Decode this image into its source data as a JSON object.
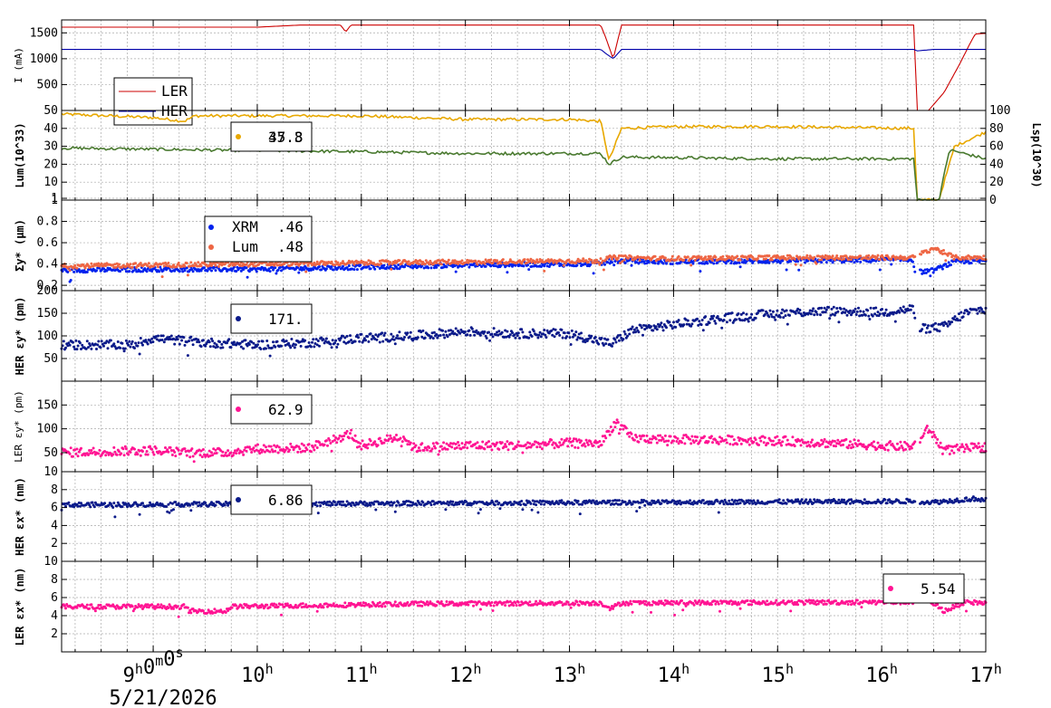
{
  "x_axis": {
    "tick_labels": [
      "9h0m0s",
      "10h",
      "11h",
      "12h",
      "13h",
      "14h",
      "15h",
      "16h",
      "17h"
    ],
    "date_label": "5/21/2026"
  },
  "chart_data": [
    {
      "type": "line",
      "ylabel": "I (mA)",
      "yticks": [
        "500",
        "1000",
        "1500"
      ],
      "ylim": [
        0,
        1750
      ],
      "x_unit": "hour",
      "xlim": [
        8.12,
        17.0
      ],
      "legend": [
        {
          "label": "LER",
          "color": "#cc0000"
        },
        {
          "label": "HER",
          "color": "#0000aa"
        }
      ],
      "series": [
        {
          "name": "LER",
          "color": "#cc0000",
          "x": [
            8.12,
            10.0,
            10.4,
            10.8,
            10.85,
            10.9,
            11.0,
            13.3,
            13.35,
            13.42,
            13.5,
            16.32,
            16.33,
            16.45,
            16.6,
            16.75,
            16.85,
            16.9,
            17.0
          ],
          "y": [
            1610,
            1610,
            1650,
            1650,
            1520,
            1650,
            1650,
            1650,
            1400,
            1000,
            1650,
            1650,
            0,
            0,
            350,
            900,
            1300,
            1480,
            1490
          ]
        },
        {
          "name": "HER",
          "color": "#0000aa",
          "x": [
            8.12,
            13.3,
            13.35,
            13.42,
            13.5,
            16.32,
            16.33,
            16.5,
            16.6,
            17.0
          ],
          "y": [
            1180,
            1180,
            1100,
            1000,
            1180,
            1180,
            1150,
            1180,
            1180,
            1180
          ]
        }
      ]
    },
    {
      "type": "line",
      "ylabel": "Lum(10^33)",
      "ylabel_right": "Lsp(10^30)",
      "yticks": [
        "1",
        "10",
        "20",
        "30",
        "40",
        "50"
      ],
      "yticks_right": [
        "0",
        "20",
        "40",
        "60",
        "80",
        "100"
      ],
      "ylim": [
        0,
        50
      ],
      "xlim": [
        8.12,
        17.0
      ],
      "legend_value": "37.3",
      "legend_value_overlap": "45.8",
      "series": [
        {
          "color": "#e8a800",
          "x": [
            8.12,
            9.0,
            9.3,
            9.4,
            11.0,
            12.0,
            13.0,
            13.3,
            13.38,
            13.5,
            14.0,
            15.0,
            16.32,
            16.33,
            16.55,
            16.7,
            17.0
          ],
          "y": [
            48,
            46,
            44,
            47,
            47,
            45,
            45,
            44,
            22,
            40,
            41,
            41,
            40,
            0,
            0,
            30,
            38
          ]
        },
        {
          "color": "#4a7a30",
          "x": [
            8.12,
            9.5,
            11.0,
            12.0,
            13.3,
            13.38,
            13.5,
            15.0,
            16.32,
            16.33,
            16.55,
            16.65,
            17.0
          ],
          "y": [
            29,
            28,
            27,
            26,
            26,
            20,
            24,
            23,
            23,
            0,
            0,
            28,
            23
          ]
        }
      ]
    },
    {
      "type": "scatter",
      "ylabel": "Σy* (μm)",
      "yticks": [
        "0.2",
        "0.4",
        "0.6",
        "0.8",
        "1"
      ],
      "ylim": [
        0.15,
        1.0
      ],
      "xlim": [
        8.12,
        17.0
      ],
      "legend": [
        {
          "label": "XRM",
          "value": ".46",
          "color": "#0022ee"
        },
        {
          "label": "Lum",
          "value": ".48",
          "color": "#ee6644"
        }
      ],
      "series": [
        {
          "name": "XRM",
          "color": "#0022ee",
          "x": [
            8.12,
            9.0,
            10.0,
            11.0,
            12.0,
            13.3,
            13.4,
            14.0,
            15.0,
            16.3,
            16.32,
            16.5,
            16.7,
            17.0
          ],
          "y": [
            0.34,
            0.35,
            0.35,
            0.37,
            0.39,
            0.4,
            0.43,
            0.42,
            0.43,
            0.44,
            0.32,
            0.34,
            0.42,
            0.43
          ]
        },
        {
          "name": "Lum",
          "color": "#ee6644",
          "x": [
            8.12,
            9.0,
            10.0,
            11.0,
            12.0,
            13.3,
            13.4,
            14.0,
            15.0,
            16.3,
            16.5,
            16.7,
            17.0
          ],
          "y": [
            0.38,
            0.39,
            0.4,
            0.41,
            0.42,
            0.43,
            0.46,
            0.45,
            0.46,
            0.46,
            0.55,
            0.46,
            0.46
          ]
        }
      ]
    },
    {
      "type": "scatter",
      "ylabel": "HER εy* (pm)",
      "yticks": [
        "50",
        "100",
        "150",
        "200"
      ],
      "ylim": [
        0,
        200
      ],
      "xlim": [
        8.12,
        17.0
      ],
      "legend_value": "171.",
      "series": [
        {
          "color": "#0a1a8a",
          "x": [
            8.12,
            8.8,
            9.0,
            9.5,
            10.0,
            10.5,
            11.0,
            11.5,
            12.0,
            12.5,
            13.0,
            13.4,
            13.6,
            14.0,
            14.5,
            15.0,
            15.5,
            16.0,
            16.3,
            16.35,
            16.6,
            16.8,
            17.0
          ],
          "y": [
            80,
            80,
            95,
            85,
            80,
            85,
            95,
            100,
            110,
            105,
            105,
            82,
            112,
            125,
            140,
            150,
            155,
            152,
            160,
            115,
            120,
            150,
            160
          ]
        }
      ]
    },
    {
      "type": "scatter",
      "ylabel": "LER εy* (pm)",
      "yticks": [
        "10",
        "50",
        "100",
        "150"
      ],
      "ylim": [
        10,
        200
      ],
      "xlim": [
        8.12,
        17.0
      ],
      "legend_value": "62.9",
      "series": [
        {
          "color": "#ff1493",
          "x": [
            8.12,
            9.0,
            9.3,
            9.7,
            10.0,
            10.5,
            10.9,
            11.0,
            11.4,
            11.5,
            12.0,
            12.5,
            13.0,
            13.3,
            13.45,
            13.6,
            14.0,
            15.0,
            16.0,
            16.3,
            16.45,
            16.6,
            17.0
          ],
          "y": [
            50,
            55,
            50,
            50,
            58,
            60,
            90,
            65,
            85,
            60,
            65,
            65,
            70,
            70,
            115,
            80,
            78,
            75,
            65,
            62,
            100,
            55,
            62
          ]
        }
      ]
    },
    {
      "type": "scatter",
      "ylabel": "HER εx* (nm)",
      "yticks": [
        "2",
        "4",
        "6",
        "8"
      ],
      "ylim": [
        0,
        10
      ],
      "xlim": [
        8.12,
        17.0
      ],
      "legend_value": "6.86",
      "series": [
        {
          "color": "#0a1a8a",
          "x": [
            8.12,
            10.0,
            12.0,
            14.0,
            16.3,
            16.5,
            16.9,
            17.0
          ],
          "y": [
            6.3,
            6.4,
            6.5,
            6.6,
            6.7,
            6.6,
            7.0,
            6.8
          ]
        }
      ]
    },
    {
      "type": "scatter",
      "ylabel": "LER εx* (nm)",
      "yticks": [
        "2",
        "4",
        "6",
        "8",
        "10"
      ],
      "ylim": [
        0,
        10
      ],
      "xlim": [
        8.12,
        17.0
      ],
      "legend_value": "5.54",
      "series": [
        {
          "color": "#ff1493",
          "x": [
            8.12,
            9.3,
            9.35,
            9.7,
            9.75,
            11.5,
            13.3,
            13.4,
            13.5,
            16.3,
            16.45,
            16.6,
            16.8,
            17.0
          ],
          "y": [
            5.0,
            5.0,
            4.5,
            4.5,
            5.0,
            5.3,
            5.4,
            4.8,
            5.4,
            5.5,
            5.8,
            4.5,
            5.5,
            5.4
          ]
        }
      ]
    }
  ]
}
